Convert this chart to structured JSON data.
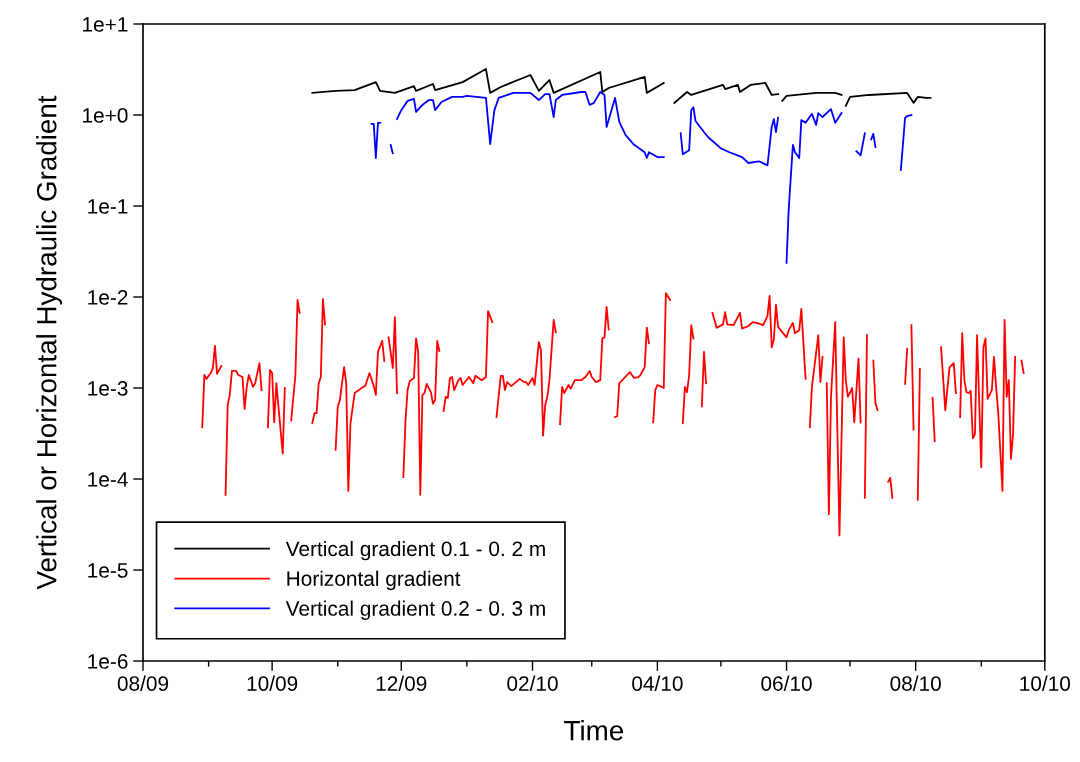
{
  "chart_data": {
    "type": "line",
    "xlabel": "Time",
    "ylabel": "Vertical or Horizontal Hydraulic Gradient",
    "log": "y",
    "grid": false,
    "legend": "bottom left",
    "line_style": "solid",
    "xlim": [
      "2009-08-01",
      "2010-10-01"
    ],
    "xticks": [
      {
        "value": "2009-08-01",
        "label": "08/09"
      },
      {
        "value": "2009-10-01",
        "label": "10/09"
      },
      {
        "value": "2009-12-01",
        "label": "12/09"
      },
      {
        "value": "2010-02-01",
        "label": "02/10"
      },
      {
        "value": "2010-04-01",
        "label": "04/10"
      },
      {
        "value": "2010-06-01",
        "label": "06/10"
      },
      {
        "value": "2010-08-01",
        "label": "08/10"
      },
      {
        "value": "2010-10-01",
        "label": "10/10"
      }
    ],
    "ylim": [
      1e-06,
      10
    ],
    "yticks": [
      {
        "value": 1e-06,
        "label": "1e-6"
      },
      {
        "value": 1e-05,
        "label": "1e-5"
      },
      {
        "value": 0.0001,
        "label": "1e-4"
      },
      {
        "value": 0.001,
        "label": "1e-3"
      },
      {
        "value": 0.01,
        "label": "1e-2"
      },
      {
        "value": 0.1,
        "label": "1e-1"
      },
      {
        "value": 1,
        "label": "1e+0"
      },
      {
        "value": 10,
        "label": "1e+1"
      }
    ],
    "series": [
      {
        "name": "Vertical gradient 0.1 - 0. 2 m",
        "color": "#000000",
        "x": [
          "2009-10-20",
          "2009-10-31",
          "2009-11-09",
          "2009-11-19",
          "2009-11-21",
          "2009-11-28",
          "2009-12-07",
          "2009-12-08",
          "2009-12-16",
          "2009-12-17",
          "2009-12-30",
          "2010-01-10",
          "2010-01-12",
          "2010-01-17",
          "2010-01-31",
          "2010-02-04",
          "2010-02-09",
          "2010-02-11",
          "2010-03-05",
          "2010-03-06",
          "2010-03-09",
          "2010-03-26",
          "2010-03-27",
          "2010-04-04",
          "2010-04-06",
          "2010-04-09",
          "2010-04-15",
          "2010-04-17",
          "2010-04-23",
          "2010-05-02",
          "2010-05-03",
          "2010-05-09",
          "2010-05-10",
          "2010-05-15",
          "2010-05-22",
          "2010-05-25",
          "2010-05-28",
          "2010-05-29",
          "2010-05-30",
          "2010-06-01",
          "2010-06-15",
          "2010-06-24",
          "2010-06-27",
          "2010-06-28",
          "2010-06-29",
          "2010-07-01",
          "2010-07-10",
          "2010-07-28",
          "2010-07-31",
          "2010-08-02",
          "2010-08-06",
          "2010-08-08"
        ],
        "values": [
          1.75,
          1.84,
          1.88,
          2.3,
          1.84,
          1.75,
          2.08,
          1.84,
          2.19,
          1.88,
          2.3,
          3.2,
          1.75,
          2.03,
          2.75,
          1.84,
          2.42,
          1.75,
          2.97,
          1.79,
          1.98,
          2.62,
          1.75,
          2.25,
          null,
          1.36,
          1.79,
          1.66,
          1.84,
          2.14,
          1.93,
          2.14,
          1.79,
          2.14,
          2.25,
          1.66,
          1.7,
          null,
          1.43,
          1.62,
          1.75,
          1.75,
          1.66,
          null,
          1.26,
          1.58,
          1.66,
          1.75,
          1.36,
          1.58,
          1.54,
          1.54
        ]
      },
      {
        "name": "Horizontal gradient",
        "color": "#ff0000",
        "x": [
          "2009-08-29",
          "2009-08-30",
          "2009-08-31",
          "2009-09-02",
          "2009-09-03",
          "2009-09-04",
          "2009-09-05",
          "2009-09-07",
          "2009-09-08",
          "2009-09-09",
          "2009-09-10",
          "2009-09-11",
          "2009-09-12",
          "2009-09-14",
          "2009-09-15",
          "2009-09-17",
          "2009-09-18",
          "2009-09-19",
          "2009-09-20",
          "2009-09-22",
          "2009-09-23",
          "2009-09-25",
          "2009-09-26",
          "2009-09-28",
          "2009-09-29",
          "2009-09-30",
          "2009-10-01",
          "2009-10-02",
          "2009-10-03",
          "2009-10-06",
          "2009-10-07",
          "2009-10-08",
          "2009-10-10",
          "2009-10-12",
          "2009-10-13",
          "2009-10-14",
          "2009-10-16",
          "2009-10-20",
          "2009-10-21",
          "2009-10-22",
          "2009-10-23",
          "2009-10-24",
          "2009-10-25",
          "2009-10-26",
          "2009-10-28",
          "2009-10-31",
          "2009-11-01",
          "2009-11-02",
          "2009-11-04",
          "2009-11-05",
          "2009-11-06",
          "2009-11-07",
          "2009-11-09",
          "2009-11-11",
          "2009-11-13",
          "2009-11-14",
          "2009-11-16",
          "2009-11-18",
          "2009-11-19",
          "2009-11-20",
          "2009-11-22",
          "2009-11-23",
          "2009-11-24",
          "2009-11-25",
          "2009-11-27",
          "2009-11-28",
          "2009-11-29",
          "2009-11-30",
          "2009-12-02",
          "2009-12-03",
          "2009-12-04",
          "2009-12-05",
          "2009-12-07",
          "2009-12-08",
          "2009-12-09",
          "2009-12-10",
          "2009-12-11",
          "2009-12-12",
          "2009-12-13",
          "2009-12-15",
          "2009-12-16",
          "2009-12-17",
          "2009-12-18",
          "2009-12-19",
          "2009-12-20",
          "2009-12-21",
          "2009-12-22",
          "2009-12-23",
          "2009-12-24",
          "2009-12-25",
          "2009-12-26",
          "2009-12-28",
          "2009-12-29",
          "2009-12-30",
          "2010-01-02",
          "2010-01-04",
          "2010-01-05",
          "2010-01-08",
          "2010-01-10",
          "2010-01-11",
          "2010-01-13",
          "2010-01-14",
          "2010-01-15",
          "2010-01-17",
          "2010-01-18",
          "2010-01-19",
          "2010-01-20",
          "2010-01-22",
          "2010-01-26",
          "2010-01-28",
          "2010-01-29",
          "2010-01-30",
          "2010-02-01",
          "2010-02-02",
          "2010-02-04",
          "2010-02-05",
          "2010-02-06",
          "2010-02-07",
          "2010-02-08",
          "2010-02-09",
          "2010-02-11",
          "2010-02-12",
          "2010-02-13",
          "2010-02-14",
          "2010-02-15",
          "2010-02-16",
          "2010-02-18",
          "2010-02-19",
          "2010-02-21",
          "2010-02-24",
          "2010-02-26",
          "2010-02-28",
          "2010-03-01",
          "2010-03-03",
          "2010-03-05",
          "2010-03-06",
          "2010-03-07",
          "2010-03-08",
          "2010-03-09",
          "2010-03-10",
          "2010-03-12",
          "2010-03-13",
          "2010-03-14",
          "2010-03-15",
          "2010-03-19",
          "2010-03-21",
          "2010-03-23",
          "2010-03-24",
          "2010-03-26",
          "2010-03-27",
          "2010-03-28",
          "2010-03-29",
          "2010-03-30",
          "2010-03-31",
          "2010-04-01",
          "2010-04-03",
          "2010-04-04",
          "2010-04-05",
          "2010-04-07",
          "2010-04-09",
          "2010-04-13",
          "2010-04-14",
          "2010-04-15",
          "2010-04-16",
          "2010-04-17",
          "2010-04-18",
          "2010-04-20",
          "2010-04-22",
          "2010-04-23",
          "2010-04-24",
          "2010-04-26",
          "2010-04-27",
          "2010-04-29",
          "2010-05-02",
          "2010-05-03",
          "2010-05-04",
          "2010-05-07",
          "2010-05-10",
          "2010-05-11",
          "2010-05-14",
          "2010-05-16",
          "2010-05-18",
          "2010-05-21",
          "2010-05-23",
          "2010-05-24",
          "2010-05-25",
          "2010-05-26",
          "2010-05-27",
          "2010-05-28",
          "2010-06-01",
          "2010-06-02",
          "2010-06-04",
          "2010-06-05",
          "2010-06-07",
          "2010-06-08",
          "2010-06-10",
          "2010-06-11",
          "2010-06-12",
          "2010-06-13",
          "2010-06-16",
          "2010-06-17",
          "2010-06-18",
          "2010-06-19",
          "2010-06-20",
          "2010-06-21",
          "2010-06-22",
          "2010-06-24",
          "2010-06-26",
          "2010-06-28",
          "2010-06-29",
          "2010-06-30",
          "2010-07-02",
          "2010-07-03",
          "2010-07-05",
          "2010-07-06",
          "2010-07-07",
          "2010-07-08",
          "2010-07-09",
          "2010-07-10",
          "2010-07-12",
          "2010-07-13",
          "2010-07-14",
          "2010-07-16",
          "2010-07-19",
          "2010-07-20",
          "2010-07-21",
          "2010-07-23",
          "2010-07-27",
          "2010-07-28",
          "2010-07-29",
          "2010-07-30",
          "2010-07-31",
          "2010-08-01",
          "2010-08-02",
          "2010-08-03",
          "2010-08-05",
          "2010-08-09",
          "2010-08-10",
          "2010-08-11",
          "2010-08-13",
          "2010-08-15",
          "2010-08-17",
          "2010-08-19",
          "2010-08-20",
          "2010-08-21",
          "2010-08-22",
          "2010-08-23",
          "2010-08-24",
          "2010-08-25",
          "2010-08-26",
          "2010-08-27",
          "2010-08-28",
          "2010-08-29",
          "2010-08-30",
          "2010-09-01",
          "2010-09-02",
          "2010-09-03",
          "2010-09-04",
          "2010-09-06",
          "2010-09-07",
          "2010-09-08",
          "2010-09-09",
          "2010-09-11",
          "2010-09-12",
          "2010-09-13",
          "2010-09-14",
          "2010-09-15",
          "2010-09-16",
          "2010-09-17",
          "2010-09-19",
          "2010-09-20",
          "2010-09-21"
        ],
        "values": [
          0.00037,
          0.00139,
          0.00126,
          0.00146,
          0.00166,
          0.0029,
          0.00143,
          0.00175,
          null,
          6.7e-05,
          0.00065,
          0.00084,
          0.00154,
          0.00154,
          0.00139,
          0.00132,
          0.00059,
          0.00103,
          0.00139,
          0.00103,
          0.00113,
          0.00188,
          0.00095,
          null,
          0.00037,
          0.00158,
          0.00146,
          0.00042,
          0.00113,
          0.00019,
          0.001,
          null,
          0.00044,
          0.00139,
          0.0093,
          0.0067,
          null,
          0.00041,
          0.00053,
          0.00053,
          0.00113,
          0.00132,
          0.0095,
          0.005,
          null,
          0.00021,
          0.00062,
          0.00074,
          0.0017,
          0.00113,
          7.4e-05,
          0.00041,
          0.00088,
          0.00095,
          0.00103,
          0.00105,
          0.00146,
          0.00105,
          0.00084,
          0.0025,
          0.0033,
          0.00198,
          null,
          0.0036,
          0.00166,
          0.006,
          0.00088,
          null,
          0.000105,
          0.00044,
          0.00095,
          0.00119,
          0.00129,
          0.0035,
          0.0025,
          6.7e-05,
          0.00084,
          0.00088,
          0.00111,
          0.0009,
          0.00067,
          0.00074,
          0.0033,
          0.00255,
          null,
          0.00056,
          0.0008,
          0.00078,
          0.00129,
          0.00132,
          0.00095,
          0.00122,
          0.00129,
          0.00108,
          0.00132,
          0.00113,
          0.00136,
          0.00122,
          0.00132,
          0.007,
          0.0053,
          null,
          0.00048,
          0.00136,
          0.00136,
          0.00095,
          0.00116,
          0.00105,
          0.00126,
          0.00116,
          0.00116,
          0.00108,
          0.00129,
          0.00108,
          0.0032,
          0.0026,
          0.0003,
          0.00065,
          0.0008,
          0.00122,
          0.0056,
          0.0041,
          null,
          0.0004,
          0.00103,
          0.00088,
          0.00108,
          0.00098,
          0.00122,
          0.00122,
          0.00132,
          0.00154,
          0.00132,
          0.00116,
          0.00122,
          0.0035,
          0.0036,
          0.0078,
          0.0044,
          null,
          0.00048,
          0.00049,
          0.00113,
          0.00119,
          0.0015,
          0.00129,
          0.00132,
          0.00139,
          0.0017,
          0.0046,
          0.0031,
          null,
          0.00042,
          0.00095,
          0.00108,
          0.00103,
          0.001,
          0.011,
          0.0093,
          null,
          0.00041,
          0.00103,
          0.0009,
          0.00139,
          0.0049,
          0.0035,
          null,
          0.00063,
          0.0025,
          0.00113,
          null,
          0.0067,
          0.0046,
          0.005,
          0.0068,
          0.005,
          0.0049,
          0.0067,
          0.0045,
          0.0048,
          0.0053,
          0.0052,
          0.0049,
          0.0062,
          0.0103,
          0.0028,
          0.0034,
          0.0082,
          0.0047,
          0.0036,
          0.0043,
          0.0052,
          0.004,
          0.0043,
          0.0074,
          0.00126,
          null,
          0.00037,
          0.00103,
          0.0038,
          0.00116,
          0.0022,
          null,
          0.00113,
          4.1e-05,
          0.0008,
          0.0053,
          2.4e-05,
          0.0036,
          0.00122,
          0.0008,
          0.001,
          0.00042,
          0.0021,
          0.00042,
          null,
          6.2e-05,
          0.0038,
          null,
          0.002,
          0.00068,
          0.00057,
          null,
          9.3e-05,
          0.000103,
          6.2e-05,
          null,
          0.00111,
          0.0027,
          null,
          0.0049,
          0.00035,
          null,
          5.9e-05,
          0.00162,
          null,
          0.00078,
          0.00026,
          null,
          0.0028,
          0.00057,
          0.0017,
          0.00188,
          0.00088,
          null,
          0.00048,
          0.004,
          0.00122,
          0.0009,
          0.00088,
          0.00093,
          0.00028,
          0.00031,
          0.0038,
          0.000135,
          0.0028,
          0.0035,
          0.00076,
          0.00095,
          0.0022,
          0.00103,
          0.00054,
          7.4e-05,
          0.0056,
          0.0008,
          0.00122,
          0.000166,
          0.00031,
          0.0022,
          null,
          0.002,
          0.00146
        ]
      },
      {
        "name": "Vertical gradient 0.2 - 0. 3 m",
        "color": "#0000ff",
        "x": [
          "2009-11-17",
          "2009-11-18",
          "2009-11-19",
          "2009-11-20",
          "2009-11-21",
          "2009-11-23",
          "2009-11-26",
          "2009-11-27",
          "2009-11-28",
          "2009-11-29",
          "2009-12-01",
          "2009-12-04",
          "2009-12-07",
          "2009-12-08",
          "2009-12-11",
          "2009-12-14",
          "2009-12-16",
          "2009-12-17",
          "2009-12-20",
          "2009-12-25",
          "2009-12-30",
          "2010-01-01",
          "2010-01-10",
          "2010-01-12",
          "2010-01-14",
          "2010-01-16",
          "2010-01-23",
          "2010-01-31",
          "2010-02-04",
          "2010-02-07",
          "2010-02-09",
          "2010-02-11",
          "2010-02-12",
          "2010-02-15",
          "2010-02-24",
          "2010-02-26",
          "2010-02-28",
          "2010-03-02",
          "2010-03-05",
          "2010-03-07",
          "2010-03-08",
          "2010-03-12",
          "2010-03-14",
          "2010-03-17",
          "2010-03-21",
          "2010-03-26",
          "2010-03-27",
          "2010-03-28",
          "2010-04-01",
          "2010-04-04",
          "2010-04-06",
          "2010-04-12",
          "2010-04-13",
          "2010-04-16",
          "2010-04-17",
          "2010-04-18",
          "2010-04-19",
          "2010-04-23",
          "2010-04-25",
          "2010-05-01",
          "2010-05-05",
          "2010-05-11",
          "2010-05-14",
          "2010-05-19",
          "2010-05-23",
          "2010-05-25",
          "2010-05-26",
          "2010-05-27",
          "2010-05-28",
          "2010-05-31",
          "2010-06-01",
          "2010-06-02",
          "2010-06-04",
          "2010-06-05",
          "2010-06-07",
          "2010-06-08",
          "2010-06-10",
          "2010-06-13",
          "2010-06-15",
          "2010-06-16",
          "2010-06-18",
          "2010-06-22",
          "2010-06-24",
          "2010-06-27",
          "2010-07-03",
          "2010-07-04",
          "2010-07-06",
          "2010-07-08",
          "2010-07-09",
          "2010-07-11",
          "2010-07-12",
          "2010-07-13",
          "2010-07-20",
          "2010-07-25",
          "2010-07-27",
          "2010-07-28",
          "2010-07-30"
        ],
        "values": [
          0.8,
          0.8,
          0.337,
          0.82,
          0.82,
          null,
          0.47,
          0.38,
          null,
          0.9,
          1.13,
          1.43,
          1.5,
          1.08,
          1.29,
          1.46,
          1.46,
          1.13,
          1.39,
          1.58,
          1.58,
          1.62,
          1.54,
          0.48,
          1.13,
          1.54,
          1.75,
          1.75,
          1.46,
          1.7,
          1.7,
          0.95,
          1.46,
          1.66,
          1.79,
          1.79,
          1.29,
          1.36,
          1.79,
          1.66,
          0.74,
          1.54,
          0.84,
          0.6,
          0.47,
          0.39,
          0.337,
          0.39,
          0.345,
          0.345,
          null,
          0.63,
          0.37,
          0.41,
          1.13,
          1.22,
          0.86,
          0.65,
          0.57,
          0.43,
          0.39,
          0.345,
          0.297,
          0.31,
          0.28,
          0.74,
          0.9,
          0.65,
          0.93,
          null,
          0.0237,
          0.09,
          0.47,
          0.39,
          0.337,
          0.88,
          0.82,
          1.03,
          0.78,
          1.05,
          0.95,
          1.16,
          0.82,
          1.05,
          null,
          0.4,
          0.36,
          0.63,
          null,
          0.54,
          0.62,
          0.445,
          null,
          0.249,
          0.93,
          0.975,
          1.0
        ]
      }
    ]
  }
}
